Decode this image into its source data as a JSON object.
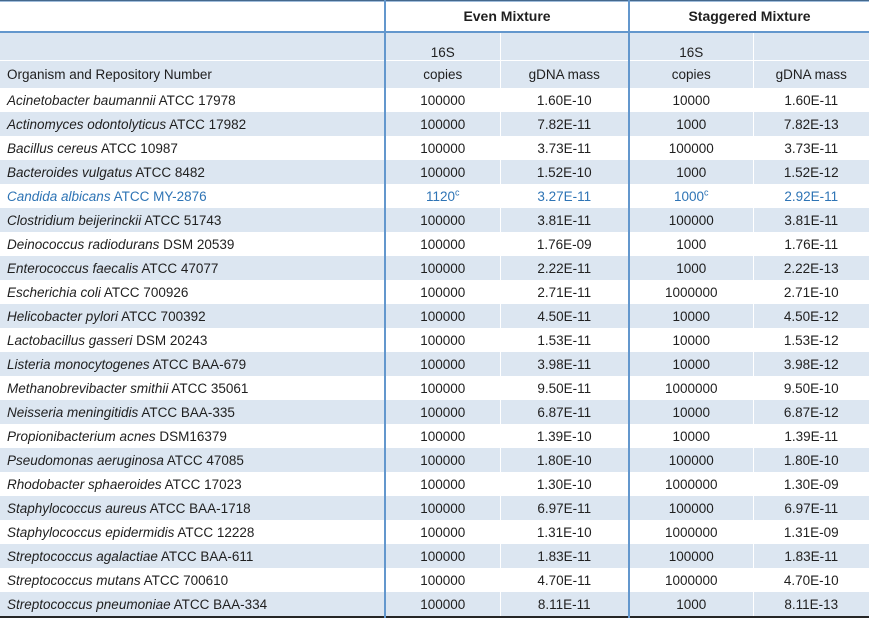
{
  "table": {
    "name": "mock-community-mixture-table",
    "group_headers": {
      "even": "Even Mixture",
      "staggered": "Staggered Mixture"
    },
    "sub_headers": {
      "organism": "Organism and Repository Number",
      "copies_line1": "16S",
      "copies_line2": "copies",
      "gdna_mass": "gDNA mass"
    },
    "colors": {
      "stripe": "#dce6f1",
      "group_line": "#6397cd",
      "highlight_text": "#2e74b5",
      "bottom_border": "#262626",
      "text": "#1f1f1f"
    },
    "rows": [
      {
        "species": "Acinetobacter baumannii",
        "repo": "ATCC 17978",
        "even_copies": "100000",
        "even_copies_sup": "",
        "even_gdna": "1.60E-10",
        "stag_copies": "10000",
        "stag_copies_sup": "",
        "stag_gdna": "1.60E-11",
        "highlight": false
      },
      {
        "species": "Actinomyces odontolyticus",
        "repo": "ATCC 17982",
        "even_copies": "100000",
        "even_copies_sup": "",
        "even_gdna": "7.82E-11",
        "stag_copies": "1000",
        "stag_copies_sup": "",
        "stag_gdna": "7.82E-13",
        "highlight": false
      },
      {
        "species": "Bacillus cereus",
        "repo": "ATCC 10987",
        "even_copies": "100000",
        "even_copies_sup": "",
        "even_gdna": "3.73E-11",
        "stag_copies": "100000",
        "stag_copies_sup": "",
        "stag_gdna": "3.73E-11",
        "highlight": false
      },
      {
        "species": "Bacteroides vulgatus",
        "repo": "ATCC 8482",
        "even_copies": "100000",
        "even_copies_sup": "",
        "even_gdna": "1.52E-10",
        "stag_copies": "1000",
        "stag_copies_sup": "",
        "stag_gdna": "1.52E-12",
        "highlight": false
      },
      {
        "species": "Candida albicans",
        "repo": "ATCC MY-2876",
        "even_copies": "1120",
        "even_copies_sup": "c",
        "even_gdna": "3.27E-11",
        "stag_copies": "1000",
        "stag_copies_sup": "c",
        "stag_gdna": "2.92E-11",
        "highlight": true
      },
      {
        "species": "Clostridium beijerinckii",
        "repo": "ATCC 51743",
        "even_copies": "100000",
        "even_copies_sup": "",
        "even_gdna": "3.81E-11",
        "stag_copies": "100000",
        "stag_copies_sup": "",
        "stag_gdna": "3.81E-11",
        "highlight": false
      },
      {
        "species": "Deinococcus radiodurans",
        "repo": "DSM 20539",
        "even_copies": "100000",
        "even_copies_sup": "",
        "even_gdna": "1.76E-09",
        "stag_copies": "1000",
        "stag_copies_sup": "",
        "stag_gdna": "1.76E-11",
        "highlight": false
      },
      {
        "species": "Enterococcus faecalis",
        "repo": "ATCC 47077",
        "even_copies": "100000",
        "even_copies_sup": "",
        "even_gdna": "2.22E-11",
        "stag_copies": "1000",
        "stag_copies_sup": "",
        "stag_gdna": "2.22E-13",
        "highlight": false
      },
      {
        "species": "Escherichia coli",
        "repo": "ATCC 700926",
        "even_copies": "100000",
        "even_copies_sup": "",
        "even_gdna": "2.71E-11",
        "stag_copies": "1000000",
        "stag_copies_sup": "",
        "stag_gdna": "2.71E-10",
        "highlight": false
      },
      {
        "species": "Helicobacter pylori",
        "repo": "ATCC 700392",
        "even_copies": "100000",
        "even_copies_sup": "",
        "even_gdna": "4.50E-11",
        "stag_copies": "10000",
        "stag_copies_sup": "",
        "stag_gdna": "4.50E-12",
        "highlight": false
      },
      {
        "species": "Lactobacillus gasseri",
        "repo": "DSM 20243",
        "even_copies": "100000",
        "even_copies_sup": "",
        "even_gdna": "1.53E-11",
        "stag_copies": "10000",
        "stag_copies_sup": "",
        "stag_gdna": "1.53E-12",
        "highlight": false
      },
      {
        "species": "Listeria monocytogenes",
        "repo": "ATCC BAA-679",
        "even_copies": "100000",
        "even_copies_sup": "",
        "even_gdna": "3.98E-11",
        "stag_copies": "10000",
        "stag_copies_sup": "",
        "stag_gdna": "3.98E-12",
        "highlight": false
      },
      {
        "species": "Methanobrevibacter smithii",
        "repo": "ATCC 35061",
        "even_copies": "100000",
        "even_copies_sup": "",
        "even_gdna": "9.50E-11",
        "stag_copies": "1000000",
        "stag_copies_sup": "",
        "stag_gdna": "9.50E-10",
        "highlight": false
      },
      {
        "species": "Neisseria meningitidis",
        "repo": "ATCC BAA-335",
        "even_copies": "100000",
        "even_copies_sup": "",
        "even_gdna": "6.87E-11",
        "stag_copies": "10000",
        "stag_copies_sup": "",
        "stag_gdna": "6.87E-12",
        "highlight": false
      },
      {
        "species": "Propionibacterium acnes",
        "repo": "DSM16379",
        "even_copies": "100000",
        "even_copies_sup": "",
        "even_gdna": "1.39E-10",
        "stag_copies": "10000",
        "stag_copies_sup": "",
        "stag_gdna": "1.39E-11",
        "highlight": false
      },
      {
        "species": "Pseudomonas aeruginosa",
        "repo": "ATCC 47085",
        "even_copies": "100000",
        "even_copies_sup": "",
        "even_gdna": "1.80E-10",
        "stag_copies": "100000",
        "stag_copies_sup": "",
        "stag_gdna": "1.80E-10",
        "highlight": false
      },
      {
        "species": "Rhodobacter sphaeroides",
        "repo": "ATCC 17023",
        "even_copies": "100000",
        "even_copies_sup": "",
        "even_gdna": "1.30E-10",
        "stag_copies": "1000000",
        "stag_copies_sup": "",
        "stag_gdna": "1.30E-09",
        "highlight": false
      },
      {
        "species": "Staphylococcus aureus",
        "repo": "ATCC BAA-1718",
        "even_copies": "100000",
        "even_copies_sup": "",
        "even_gdna": "6.97E-11",
        "stag_copies": "100000",
        "stag_copies_sup": "",
        "stag_gdna": "6.97E-11",
        "highlight": false
      },
      {
        "species": "Staphylococcus epidermidis",
        "repo": "ATCC 12228",
        "even_copies": "100000",
        "even_copies_sup": "",
        "even_gdna": "1.31E-10",
        "stag_copies": "1000000",
        "stag_copies_sup": "",
        "stag_gdna": "1.31E-09",
        "highlight": false
      },
      {
        "species": "Streptococcus agalactiae",
        "repo": "ATCC BAA-611",
        "even_copies": "100000",
        "even_copies_sup": "",
        "even_gdna": "1.83E-11",
        "stag_copies": "100000",
        "stag_copies_sup": "",
        "stag_gdna": "1.83E-11",
        "highlight": false
      },
      {
        "species": "Streptococcus mutans",
        "repo": "ATCC 700610",
        "even_copies": "100000",
        "even_copies_sup": "",
        "even_gdna": "4.70E-11",
        "stag_copies": "1000000",
        "stag_copies_sup": "",
        "stag_gdna": "4.70E-10",
        "highlight": false
      },
      {
        "species": "Streptococcus pneumoniae",
        "repo": "ATCC BAA-334",
        "even_copies": "100000",
        "even_copies_sup": "",
        "even_gdna": "8.11E-11",
        "stag_copies": "1000",
        "stag_copies_sup": "",
        "stag_gdna": "8.11E-13",
        "highlight": false
      }
    ]
  }
}
